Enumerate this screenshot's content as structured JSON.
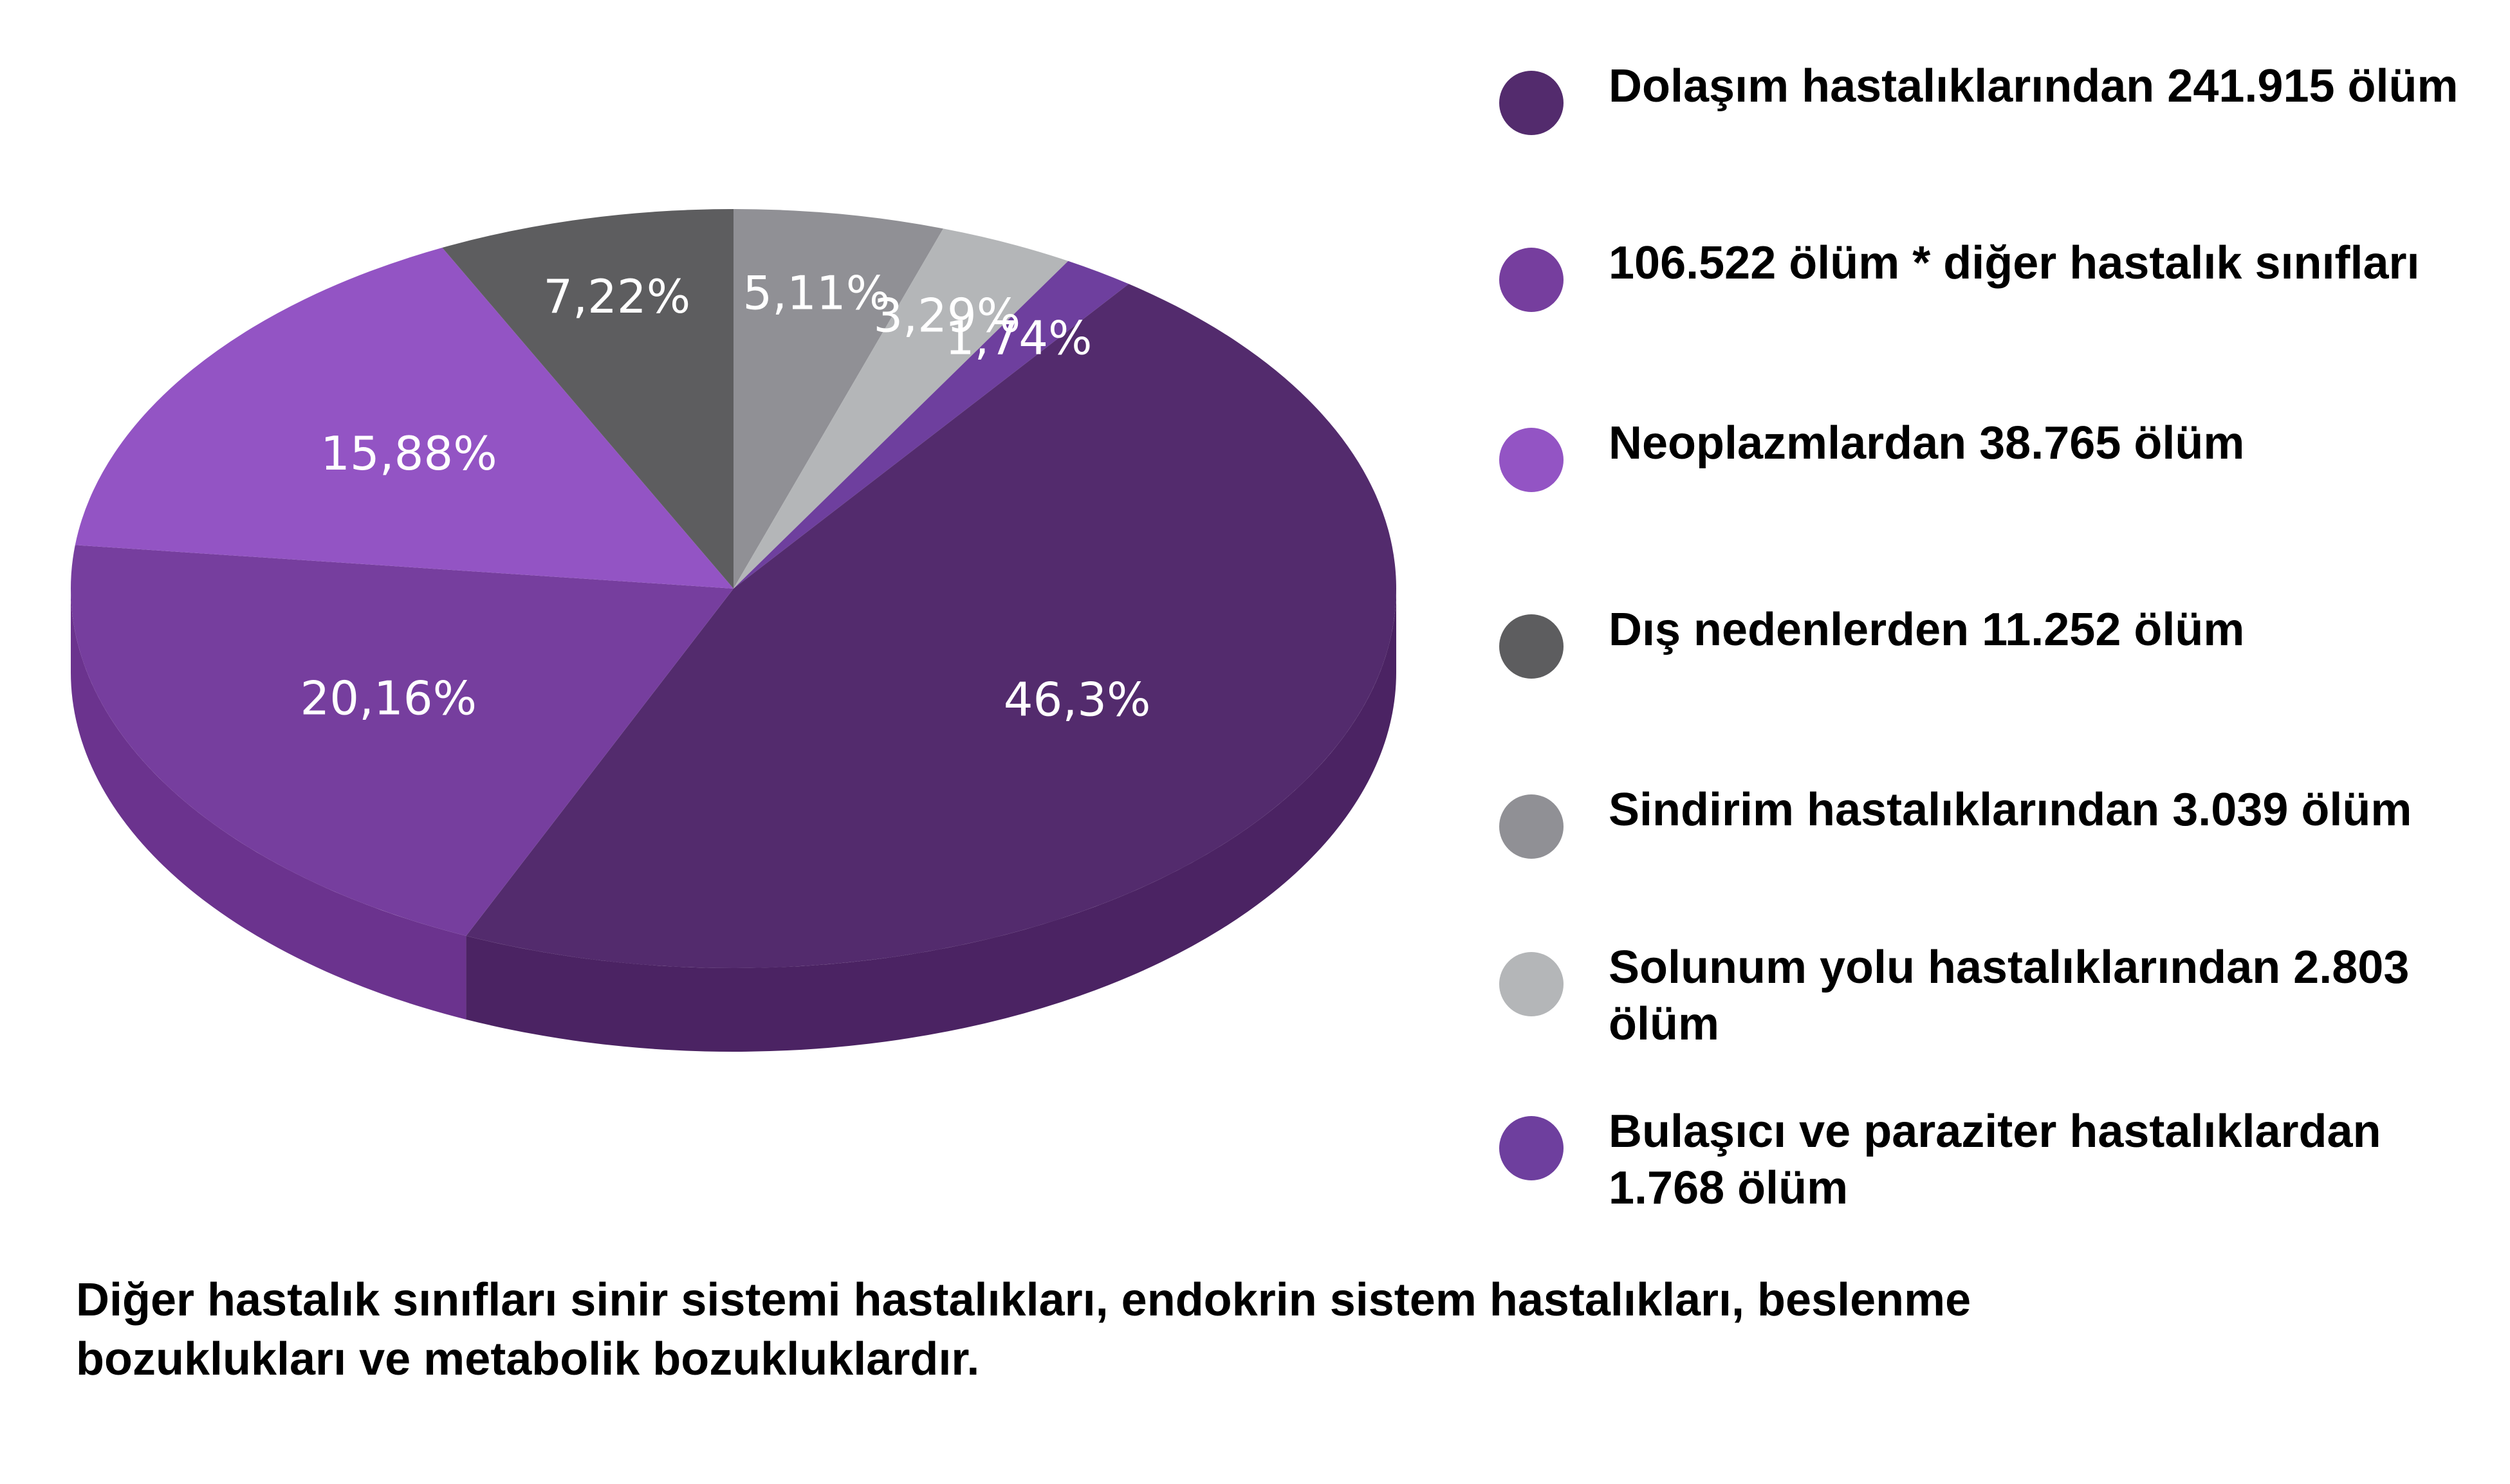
{
  "chart_data": {
    "type": "pie",
    "style": "3d",
    "start_angle_deg": -90,
    "direction": "clockwise",
    "title": "",
    "slices": [
      {
        "label": "5,11%",
        "value": 5.11,
        "color": "#909095",
        "side": "#6d6d72"
      },
      {
        "label": "3,29%",
        "value": 3.29,
        "color": "#b4b6b8",
        "side": "#8e9092"
      },
      {
        "label": "1,74%",
        "value": 1.74,
        "color": "#6e3f9e",
        "side": "#4f2675"
      },
      {
        "label": "46,3%",
        "value": 46.3,
        "color": "#532b6d",
        "side": "#4b2363"
      },
      {
        "label": "20,16%",
        "value": 20.16,
        "color": "#763e9e",
        "side": "#6b338e"
      },
      {
        "label": "15,88%",
        "value": 15.88,
        "color": "#9354c4",
        "side": "#7a3ea8"
      },
      {
        "label": "7,22%",
        "value": 7.22,
        "color": "#5d5d5f",
        "side": "#444446"
      }
    ]
  },
  "legend": [
    {
      "text": "Dolaşım hastalıklarından 241.915 ölüm",
      "color": "#532b6d"
    },
    {
      "text": "106.522 ölüm * diğer hastalık sınıfları",
      "color": "#763e9e"
    },
    {
      "text": "Neoplazmlardan 38.765 ölüm",
      "color": "#9354c4"
    },
    {
      "text": "Dış nedenlerden 11.252 ölüm",
      "color": "#5d5d5f"
    },
    {
      "text": "Sindirim hastalıklarından 3.039 ölüm",
      "color": "#909095"
    },
    {
      "text": "Solunum yolu hastalıklarından 2.803 ölüm",
      "color": "#b4b6b8"
    },
    {
      "text": "Bulaşıcı ve paraziter hastalıklardan 1.768 ölüm",
      "color": "#6e3f9e"
    }
  ],
  "footnote": "Diğer hastalık sınıfları sinir sistemi hastalıkları, endokrin sistem hastalıkları, beslenme bozuklukları ve metabolik bozukluklardır."
}
